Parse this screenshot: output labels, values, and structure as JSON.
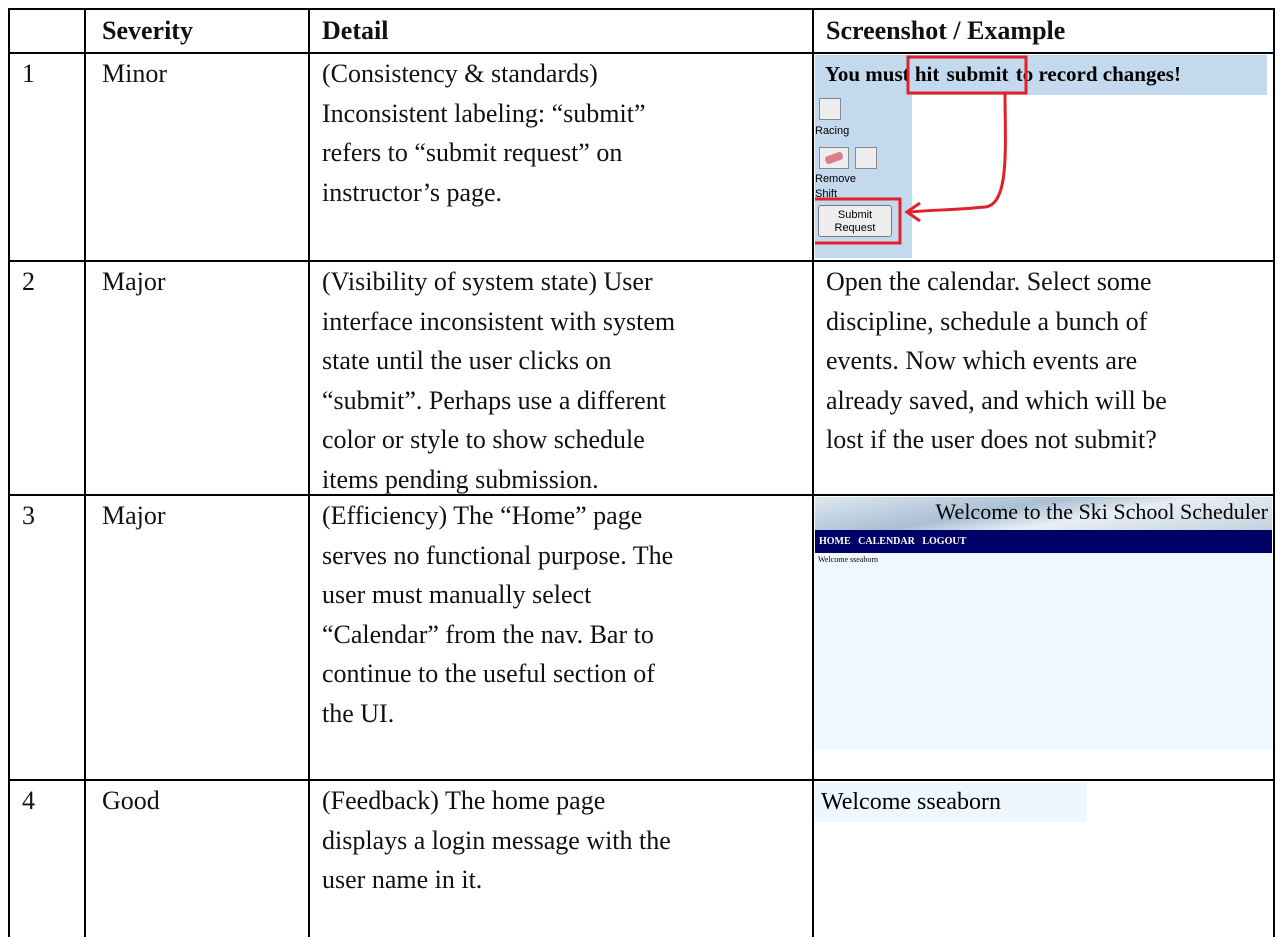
{
  "table": {
    "header": [
      "Severity",
      "Detail",
      "Screenshot / Example"
    ],
    "rows": [
      {
        "number": "1",
        "severity": "Minor",
        "detail": [
          "(Consistency & standards)",
          "Inconsistent labeling: “submit”",
          "refers to “submit request” on",
          "instructor’s page."
        ],
        "example": {
          "banner": [
            "You must hit",
            "submit",
            "to record changes!"
          ],
          "tools": [
            "Racing",
            "Remove",
            "Shift"
          ],
          "button": [
            "Submit",
            "Request"
          ]
        }
      },
      {
        "number": "2",
        "severity": "Major",
        "detail": [
          "(Visibility of system state) User",
          "interface inconsistent with system",
          "state until the user clicks on",
          "“submit”. Perhaps use a different",
          "color or style to show schedule",
          "items pending submission."
        ],
        "example": {
          "lines": [
            "Open the calendar. Select some",
            "discipline, schedule a bunch of",
            "events. Now which events are",
            "already saved, and which will be",
            "lost if the user does not submit?"
          ]
        }
      },
      {
        "number": "3",
        "severity": "Major",
        "detail": [
          "(Efficiency) The “Home” page",
          "serves no functional purpose. The",
          "user must manually select",
          "“Calendar” from the nav. Bar to",
          "continue to the useful section of",
          "the UI."
        ],
        "example": {
          "title": "Welcome to the Ski School Scheduler",
          "nav": [
            "HOME",
            "CALENDAR",
            "LOGOUT"
          ],
          "message": "Welcome sseaborn"
        }
      },
      {
        "number": "4",
        "severity": "Good",
        "detail": [
          "(Feedback) The home page",
          "displays a login message with the",
          "user name in it."
        ],
        "example": {
          "message": "Welcome sseaborn"
        }
      }
    ]
  }
}
